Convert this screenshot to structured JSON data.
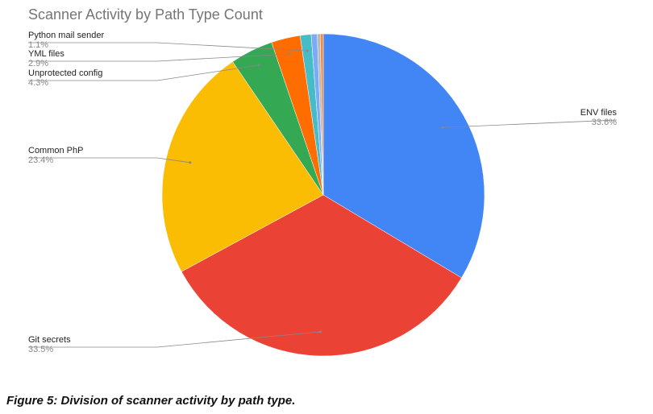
{
  "chart_data": {
    "type": "pie",
    "title": "Scanner Activity by Path Type Count",
    "categories": [
      "ENV files",
      "Git secrets",
      "Common PhP",
      "Unprotected config",
      "YML files",
      "Python mail sender",
      null,
      null,
      null
    ],
    "values": [
      33.6,
      33.5,
      23.4,
      4.3,
      2.9,
      1.1,
      0.6,
      0.3,
      0.3
    ],
    "value_labels": [
      "33.6%",
      "33.5%",
      "23.4%",
      "4.3%",
      "2.9%",
      "1.1%",
      null,
      null,
      null
    ],
    "colors": [
      "#4285f4",
      "#ea4335",
      "#fbbc04",
      "#34a853",
      "#ff6d01",
      "#46bdc6",
      "#7baaf7",
      "#b7b7b7",
      "#f6883f"
    ]
  },
  "caption": "Figure 5: Division of scanner activity by path type."
}
